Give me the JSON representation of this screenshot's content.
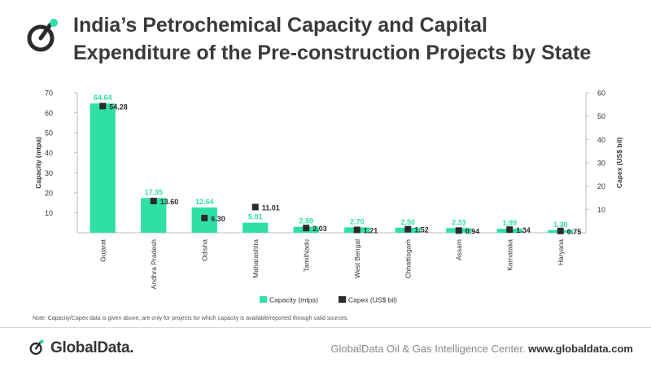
{
  "header": {
    "title_line1": "India’s Petrochemical Capacity and Capital",
    "title_line2": "Expenditure of the Pre-construction Projects by State"
  },
  "note": "Note: Capacity/Capex data is given above, are only for projects for which capacity is available/reported through valid sources.",
  "footer": {
    "brand": "GlobalData.",
    "source": "GlobalData Oil & Gas Intelligence Center.",
    "url": "www.globaldata.com"
  },
  "colors": {
    "bar": "#2fe0a4",
    "bar_label": "#2fe0a4",
    "marker": "#2b2b2b",
    "brand": "#2fe0a4"
  },
  "chart_data": {
    "type": "bar",
    "categories": [
      "Gujarat",
      "Andhra Pradesh",
      "Odisha",
      "Maharashtra",
      "TamilNadu",
      "West Bengal",
      "Chhattisgarh",
      "Assam",
      "Karnataka",
      "Haryana"
    ],
    "series": [
      {
        "name": "Capacity (mtpa)",
        "type": "bar",
        "axis": "left",
        "values": [
          64.64,
          17.35,
          12.64,
          5.01,
          2.99,
          2.7,
          2.5,
          2.33,
          1.99,
          1.3
        ],
        "labels": [
          "64.64",
          "17.35",
          "12.64",
          "5.01",
          "2.99",
          "2.70",
          "2.50",
          "2.33",
          "1.99",
          "1.30"
        ]
      },
      {
        "name": "Capex (US$ bil)",
        "type": "marker",
        "axis": "right",
        "values": [
          54.28,
          13.6,
          6.3,
          11.01,
          2.03,
          1.21,
          1.52,
          0.94,
          1.34,
          0.75
        ],
        "labels": [
          "54.28",
          "13.60",
          "6.30",
          "11.01",
          "2.03",
          "1.21",
          "1.52",
          "0.94",
          "1.34",
          "0.75"
        ]
      }
    ],
    "y_left": {
      "label": "Capacity (mtpa)",
      "ticks": [
        10,
        20,
        30,
        40,
        50,
        60,
        70
      ],
      "lim": [
        0,
        70
      ]
    },
    "y_right": {
      "label": "Capex (US$ bil)",
      "ticks": [
        10,
        20,
        30,
        40,
        50,
        60
      ],
      "lim": [
        0,
        60
      ]
    },
    "legend": {
      "position": "bottom"
    },
    "grid": false
  }
}
